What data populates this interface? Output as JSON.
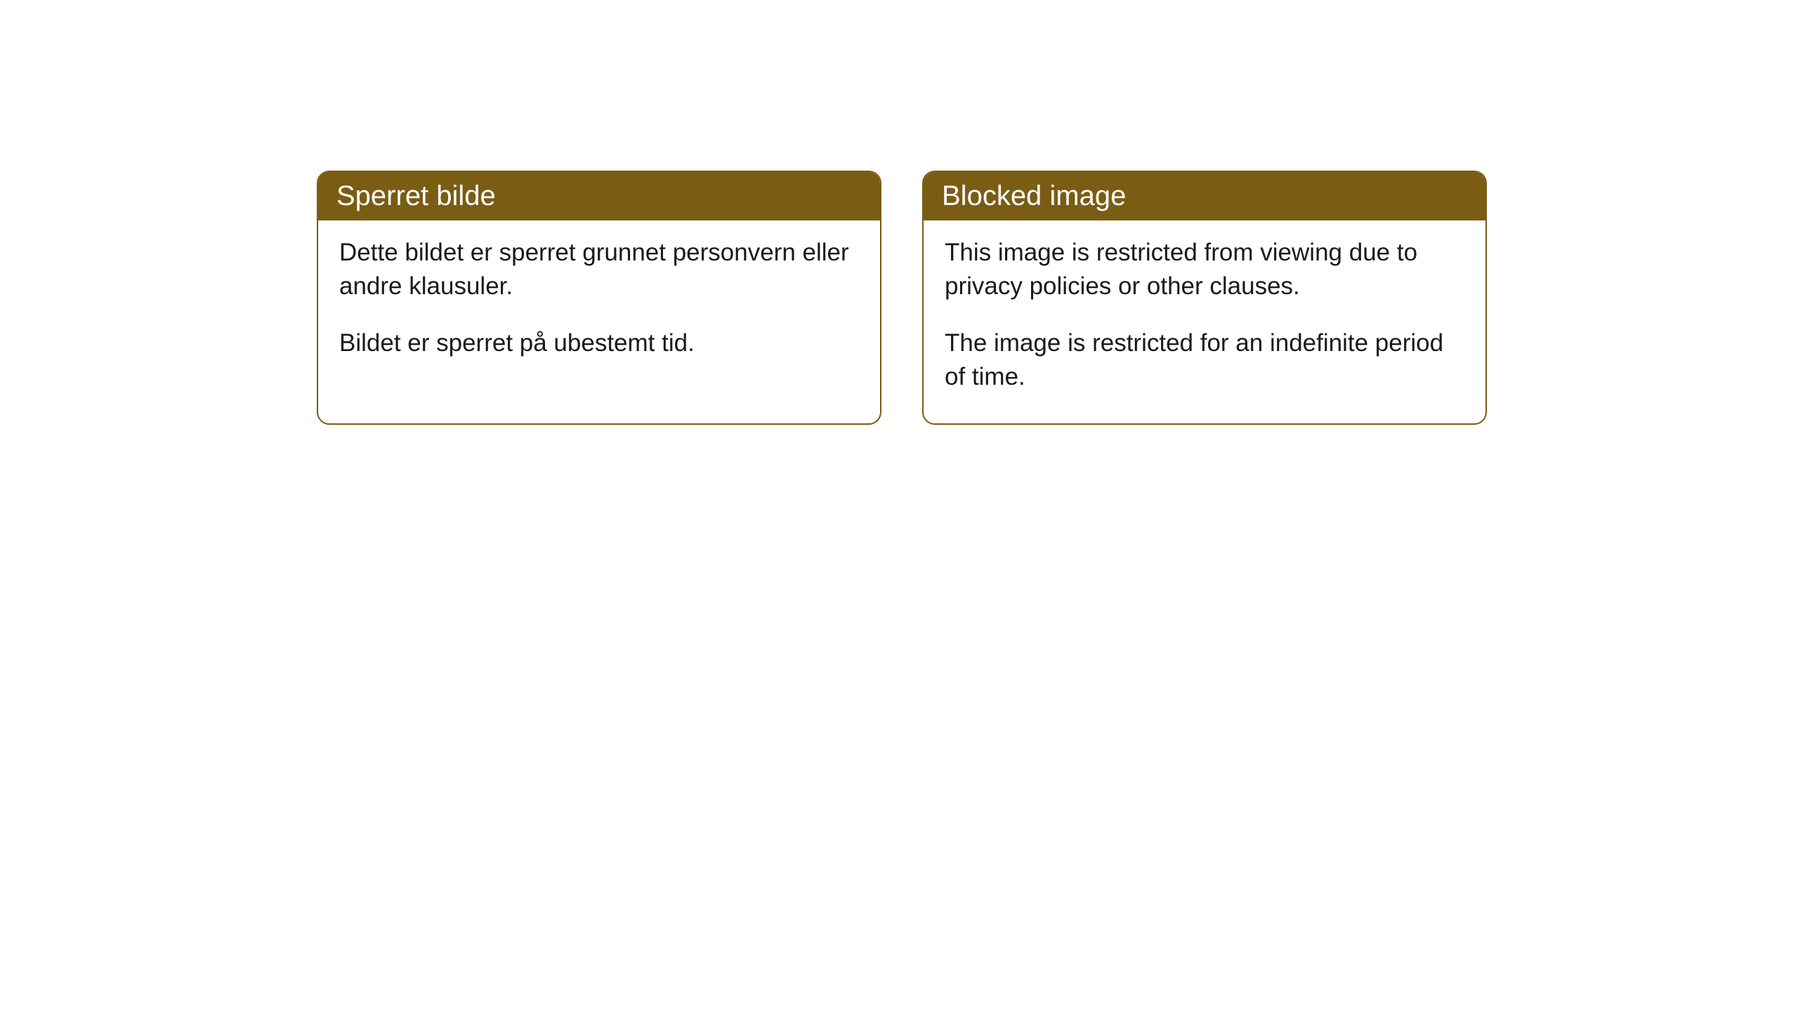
{
  "cards": [
    {
      "title": "Sperret bilde",
      "paragraph1": "Dette bildet er sperret grunnet personvern eller andre klausuler.",
      "paragraph2": "Bildet er sperret på ubestemt tid."
    },
    {
      "title": "Blocked image",
      "paragraph1": "This image is restricted from viewing due to privacy policies or other clauses.",
      "paragraph2": "The image is restricted for an indefinite period of time."
    }
  ],
  "style": {
    "header_background": "#7a5c13",
    "header_text_color": "#ffffff",
    "border_color": "#7a5c13",
    "body_text_color": "#1a1a1a",
    "card_background": "#ffffff",
    "page_background": "#ffffff",
    "border_radius": 18,
    "title_fontsize": 40,
    "body_fontsize": 35
  }
}
